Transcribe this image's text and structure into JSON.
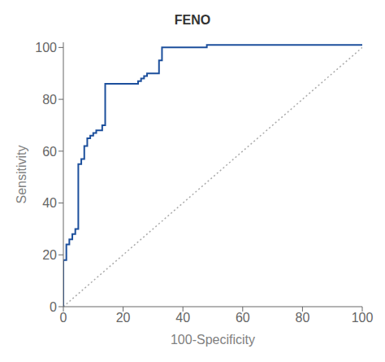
{
  "chart_data": {
    "type": "line",
    "title": "FENO",
    "xlabel": "100-Specificity",
    "ylabel": "Sensitivity",
    "xlim": [
      0,
      100
    ],
    "ylim": [
      0,
      102
    ],
    "xticks": [
      0,
      20,
      40,
      60,
      80,
      100
    ],
    "yticks": [
      0,
      20,
      40,
      60,
      80,
      100
    ],
    "grid": false,
    "series": [
      {
        "x": [
          0,
          100
        ],
        "values": [
          0,
          100
        ],
        "color": "#aaaaaa",
        "line_style": "dotted"
      },
      {
        "x": [
          0,
          0,
          1,
          1,
          2,
          2,
          3,
          3,
          4,
          4,
          5,
          5,
          6,
          6,
          7,
          7,
          8,
          8,
          9,
          9,
          10,
          10,
          11,
          11,
          13,
          13,
          14,
          14,
          25,
          25,
          26,
          26,
          27,
          27,
          28,
          28,
          32,
          32,
          33,
          33,
          48,
          48,
          100
        ],
        "values": [
          0,
          18,
          18,
          24,
          24,
          26,
          26,
          28,
          28,
          30,
          30,
          55,
          55,
          57,
          57,
          62,
          62,
          65,
          65,
          66,
          66,
          67,
          67,
          68,
          68,
          70,
          70,
          86,
          86,
          87,
          87,
          88,
          88,
          89,
          89,
          90,
          90,
          95,
          95,
          100,
          100,
          101,
          101
        ],
        "color": "#1c4f9c",
        "line_style": "solid"
      }
    ]
  }
}
